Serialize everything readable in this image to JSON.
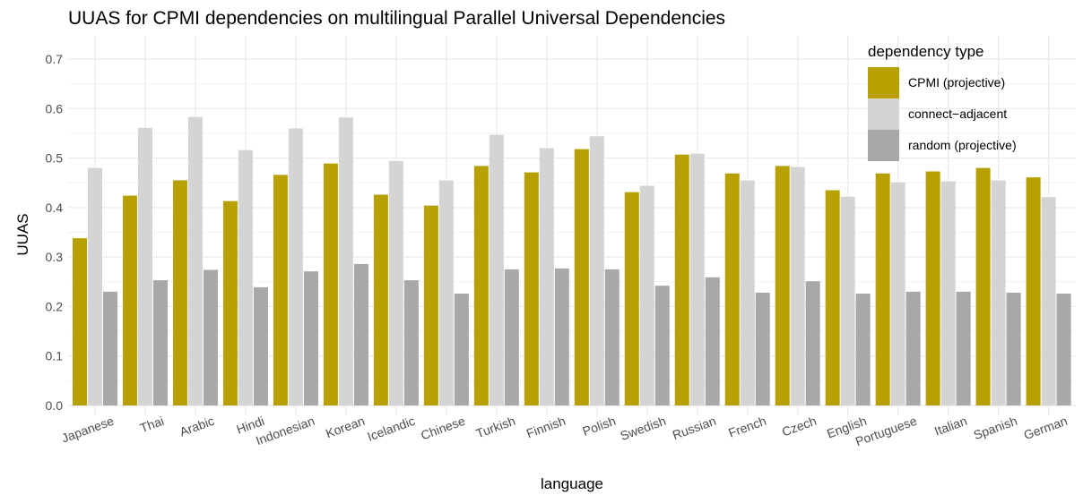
{
  "chart_data": {
    "type": "bar",
    "title": "UUAS for CPMI dependencies on multilingual Parallel Universal Dependencies",
    "xlabel": "language",
    "ylabel": "UUAS",
    "ylim": [
      0,
      0.72
    ],
    "yticks": [
      "0.0",
      "0.1",
      "0.2",
      "0.3",
      "0.4",
      "0.5",
      "0.6",
      "0.7"
    ],
    "grid": true,
    "legend_position": "top-right",
    "legend_title": "dependency type",
    "categories": [
      "Japanese",
      "Thai",
      "Arabic",
      "Hindi",
      "Indonesian",
      "Korean",
      "Icelandic",
      "Chinese",
      "Turkish",
      "Finnish",
      "Polish",
      "Swedish",
      "Russian",
      "French",
      "Czech",
      "English",
      "Portuguese",
      "Italian",
      "Spanish",
      "German"
    ],
    "series": [
      {
        "name": "CPMI (projective)",
        "color": "#b8a000",
        "values": [
          0.338,
          0.424,
          0.455,
          0.413,
          0.466,
          0.489,
          0.426,
          0.404,
          0.484,
          0.471,
          0.518,
          0.431,
          0.507,
          0.469,
          0.484,
          0.435,
          0.469,
          0.473,
          0.48,
          0.461
        ]
      },
      {
        "name": "connect−adjacent",
        "color": "#d4d4d4",
        "values": [
          0.48,
          0.561,
          0.583,
          0.516,
          0.56,
          0.582,
          0.494,
          0.455,
          0.547,
          0.52,
          0.544,
          0.444,
          0.509,
          0.455,
          0.482,
          0.422,
          0.451,
          0.453,
          0.455,
          0.421
        ]
      },
      {
        "name": "random (projective)",
        "color": "#a8a8a8",
        "values": [
          0.23,
          0.253,
          0.274,
          0.239,
          0.271,
          0.286,
          0.253,
          0.226,
          0.275,
          0.277,
          0.275,
          0.242,
          0.259,
          0.228,
          0.251,
          0.226,
          0.23,
          0.23,
          0.228,
          0.226
        ]
      }
    ]
  }
}
